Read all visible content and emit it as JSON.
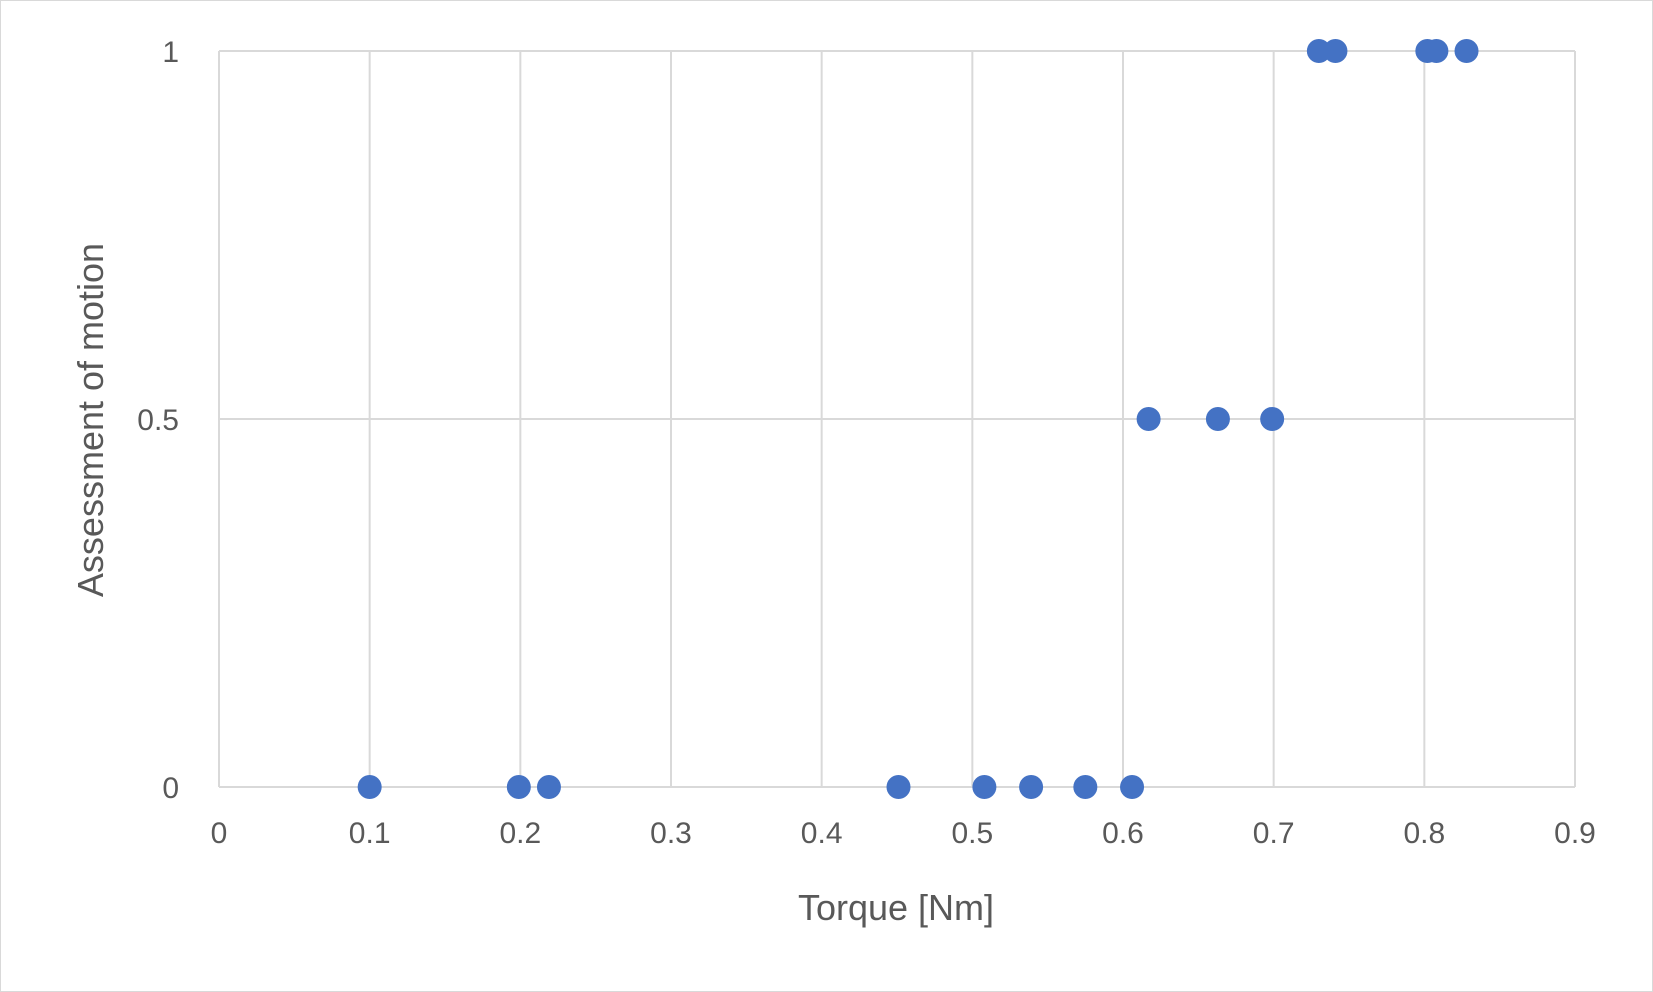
{
  "chart_data": {
    "type": "scatter",
    "title": "",
    "xlabel": "Torque [Nm]",
    "ylabel": "Assessment of motion",
    "xlim": [
      0,
      0.9
    ],
    "ylim": [
      0,
      1
    ],
    "x_ticks": [
      "0",
      "0.1",
      "0.2",
      "0.3",
      "0.4",
      "0.5",
      "0.6",
      "0.7",
      "0.8",
      "0.9"
    ],
    "y_ticks": [
      "0",
      "0.5",
      "1"
    ],
    "x_tick_values": [
      0,
      0.1,
      0.2,
      0.3,
      0.4,
      0.5,
      0.6,
      0.7,
      0.8,
      0.9
    ],
    "y_tick_values": [
      0,
      0.5,
      1
    ],
    "grid": true,
    "marker_color": "#4472c4",
    "gridline_color": "#d9d9d9",
    "series": [
      {
        "points": [
          {
            "x": 0.1,
            "y": 0
          },
          {
            "x": 0.199,
            "y": 0
          },
          {
            "x": 0.219,
            "y": 0
          },
          {
            "x": 0.451,
            "y": 0
          },
          {
            "x": 0.508,
            "y": 0
          },
          {
            "x": 0.539,
            "y": 0
          },
          {
            "x": 0.575,
            "y": 0
          },
          {
            "x": 0.606,
            "y": 0
          },
          {
            "x": 0.617,
            "y": 0.5
          },
          {
            "x": 0.663,
            "y": 0.5
          },
          {
            "x": 0.699,
            "y": 0.5
          },
          {
            "x": 0.73,
            "y": 1
          },
          {
            "x": 0.741,
            "y": 1
          },
          {
            "x": 0.802,
            "y": 1
          },
          {
            "x": 0.808,
            "y": 1
          },
          {
            "x": 0.828,
            "y": 1
          }
        ]
      }
    ]
  }
}
